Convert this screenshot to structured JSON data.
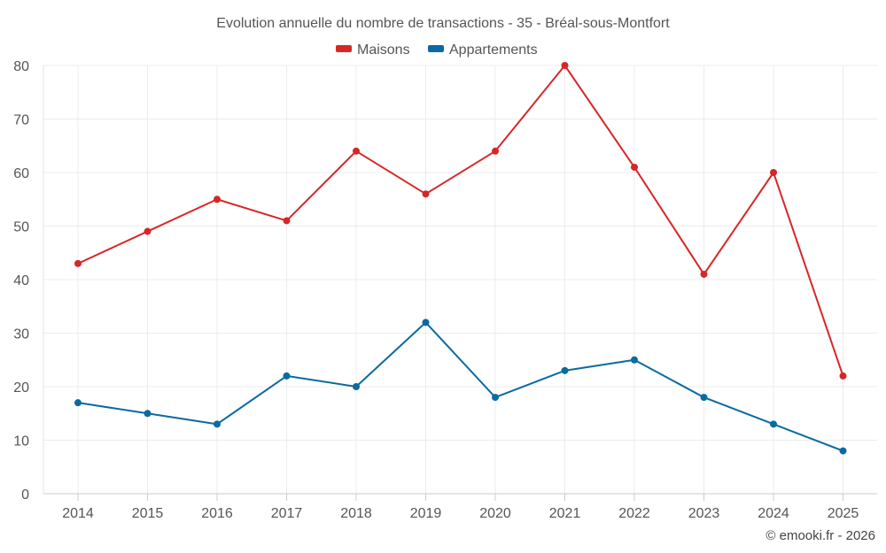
{
  "chart_data": {
    "type": "line",
    "title": "Evolution annuelle du nombre de transactions - 35 - Bréal-sous-Montfort",
    "categories": [
      "2014",
      "2015",
      "2016",
      "2017",
      "2018",
      "2019",
      "2020",
      "2021",
      "2022",
      "2023",
      "2024",
      "2025"
    ],
    "series": [
      {
        "name": "Maisons",
        "color": "#d62728",
        "values": [
          43,
          49,
          55,
          51,
          64,
          56,
          64,
          80,
          61,
          41,
          60,
          22
        ]
      },
      {
        "name": "Appartements",
        "color": "#0a6aa1",
        "values": [
          17,
          15,
          13,
          22,
          20,
          32,
          18,
          23,
          25,
          18,
          13,
          8
        ]
      }
    ],
    "ylim": [
      0,
      80
    ],
    "yticks": [
      0,
      10,
      20,
      30,
      40,
      50,
      60,
      70,
      80
    ],
    "xlabel": "",
    "ylabel": "",
    "grid": true,
    "legend_position": "top-center"
  },
  "credit": "© emooki.fr - 2026"
}
